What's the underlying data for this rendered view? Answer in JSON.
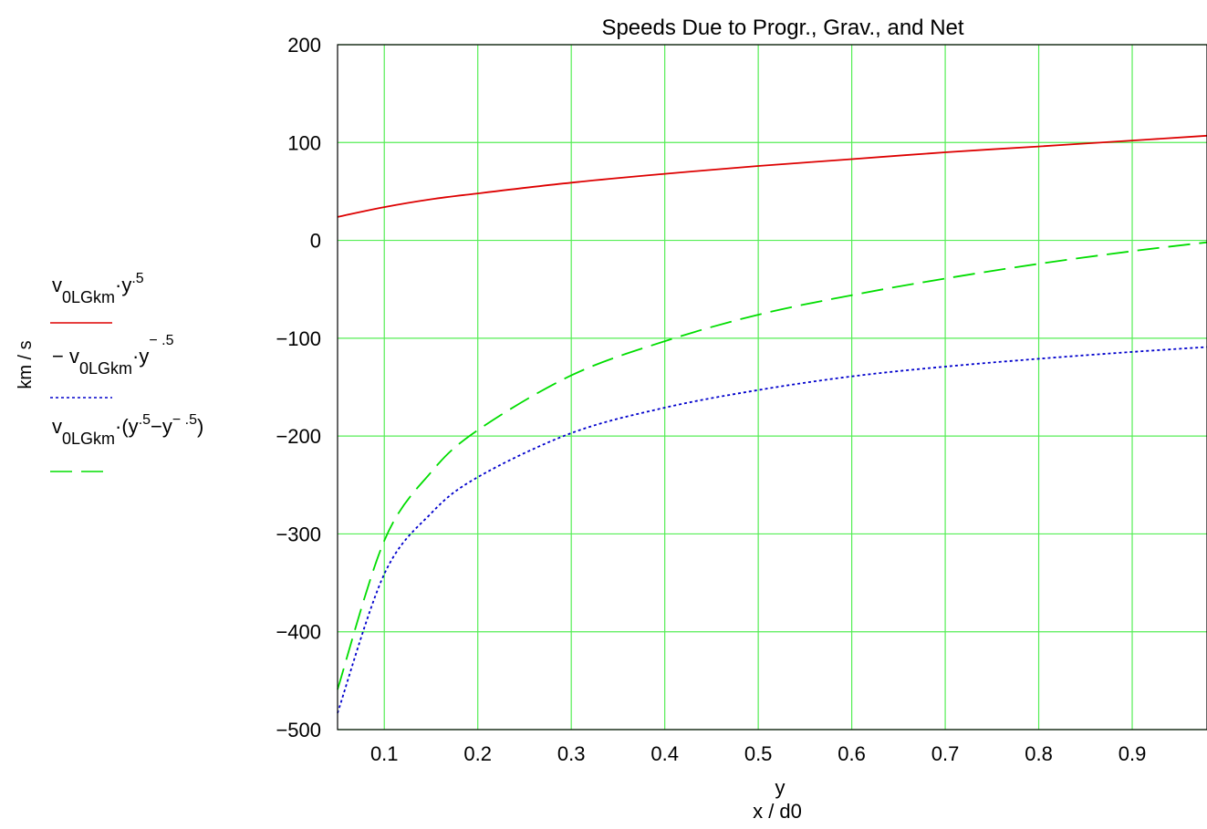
{
  "chart_data": {
    "type": "line",
    "title": "Speeds Due to Progr., Grav., and Net",
    "ylabel": "km / s",
    "xlabel_top": "y",
    "xlabel_bottom": "x / d0",
    "xlim": [
      0.05,
      0.98
    ],
    "ylim": [
      -500,
      200
    ],
    "x_ticks": [
      0.1,
      0.2,
      0.3,
      0.4,
      0.5,
      0.6,
      0.7,
      0.8,
      0.9
    ],
    "x_tick_labels": [
      "0.1",
      "0.2",
      "0.3",
      "0.4",
      "0.5",
      "0.6",
      "0.7",
      "0.8",
      "0.9"
    ],
    "y_ticks": [
      200,
      100,
      0,
      -100,
      -200,
      -300,
      -400,
      -500
    ],
    "y_tick_labels": [
      "200",
      "100",
      "0",
      "−100",
      "−200",
      "−300",
      "−400",
      "−500"
    ],
    "grid": true,
    "grid_color": "#55ee55",
    "series": [
      {
        "name": "v0LGkm·y^.5",
        "color": "#dd0000",
        "dash": "solid",
        "x": [
          0.05,
          0.1,
          0.15,
          0.2,
          0.3,
          0.4,
          0.5,
          0.6,
          0.7,
          0.8,
          0.9,
          0.98
        ],
        "y": [
          24,
          34,
          42,
          48,
          59,
          68,
          76,
          83,
          90,
          96,
          102,
          107
        ]
      },
      {
        "name": "−v0LGkm·y^−.5",
        "color": "#0000cc",
        "dash": "dotted",
        "x": [
          0.05,
          0.1,
          0.15,
          0.2,
          0.3,
          0.4,
          0.5,
          0.6,
          0.7,
          0.8,
          0.9,
          0.98
        ],
        "y": [
          -483,
          -341,
          -279,
          -242,
          -197,
          -171,
          -153,
          -139,
          -129,
          -121,
          -114,
          -109
        ]
      },
      {
        "name": "v0LGkm·(y^.5 − y^−.5)",
        "color": "#00dd00",
        "dash": "dashed",
        "x": [
          0.05,
          0.1,
          0.15,
          0.2,
          0.3,
          0.4,
          0.5,
          0.6,
          0.7,
          0.8,
          0.9,
          0.98
        ],
        "y": [
          -459,
          -307,
          -237,
          -194,
          -138,
          -103,
          -76,
          -56,
          -39,
          -24,
          -11,
          -2
        ]
      }
    ],
    "legend_placement": "left"
  }
}
